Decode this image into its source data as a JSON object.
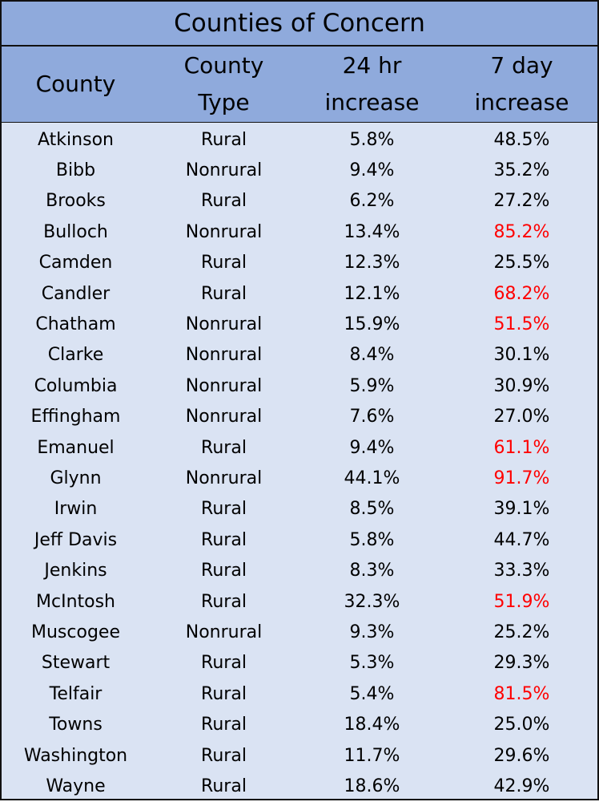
{
  "title": "Counties of Concern",
  "colors": {
    "header_bg": "#8faadc",
    "body_bg": "#dae3f3",
    "highlight": "#ff0000"
  },
  "columns": {
    "county": "County",
    "type_line1": "County",
    "type_line2": "Type",
    "h24_line1": "24 hr",
    "h24_line2": "increase",
    "d7_line1": "7 day",
    "d7_line2": "increase"
  },
  "rows": [
    {
      "county": "Atkinson",
      "type": "Rural",
      "h24": "5.8%",
      "d7": "48.5%",
      "highlight": false
    },
    {
      "county": "Bibb",
      "type": "Nonrural",
      "h24": "9.4%",
      "d7": "35.2%",
      "highlight": false
    },
    {
      "county": "Brooks",
      "type": "Rural",
      "h24": "6.2%",
      "d7": "27.2%",
      "highlight": false
    },
    {
      "county": "Bulloch",
      "type": "Nonrural",
      "h24": "13.4%",
      "d7": "85.2%",
      "highlight": true
    },
    {
      "county": "Camden",
      "type": "Rural",
      "h24": "12.3%",
      "d7": "25.5%",
      "highlight": false
    },
    {
      "county": "Candler",
      "type": "Rural",
      "h24": "12.1%",
      "d7": "68.2%",
      "highlight": true
    },
    {
      "county": "Chatham",
      "type": "Nonrural",
      "h24": "15.9%",
      "d7": "51.5%",
      "highlight": true
    },
    {
      "county": "Clarke",
      "type": "Nonrural",
      "h24": "8.4%",
      "d7": "30.1%",
      "highlight": false
    },
    {
      "county": "Columbia",
      "type": "Nonrural",
      "h24": "5.9%",
      "d7": "30.9%",
      "highlight": false
    },
    {
      "county": "Effingham",
      "type": "Nonrural",
      "h24": "7.6%",
      "d7": "27.0%",
      "highlight": false
    },
    {
      "county": "Emanuel",
      "type": "Rural",
      "h24": "9.4%",
      "d7": "61.1%",
      "highlight": true
    },
    {
      "county": "Glynn",
      "type": "Nonrural",
      "h24": "44.1%",
      "d7": "91.7%",
      "highlight": true
    },
    {
      "county": "Irwin",
      "type": "Rural",
      "h24": "8.5%",
      "d7": "39.1%",
      "highlight": false
    },
    {
      "county": "Jeff Davis",
      "type": "Rural",
      "h24": "5.8%",
      "d7": "44.7%",
      "highlight": false
    },
    {
      "county": "Jenkins",
      "type": "Rural",
      "h24": "8.3%",
      "d7": "33.3%",
      "highlight": false
    },
    {
      "county": "McIntosh",
      "type": "Rural",
      "h24": "32.3%",
      "d7": "51.9%",
      "highlight": true
    },
    {
      "county": "Muscogee",
      "type": "Nonrural",
      "h24": "9.3%",
      "d7": "25.2%",
      "highlight": false
    },
    {
      "county": "Stewart",
      "type": "Rural",
      "h24": "5.3%",
      "d7": "29.3%",
      "highlight": false
    },
    {
      "county": "Telfair",
      "type": "Rural",
      "h24": "5.4%",
      "d7": "81.5%",
      "highlight": true
    },
    {
      "county": "Towns",
      "type": "Rural",
      "h24": "18.4%",
      "d7": "25.0%",
      "highlight": false
    },
    {
      "county": "Washington",
      "type": "Rural",
      "h24": "11.7%",
      "d7": "29.6%",
      "highlight": false
    },
    {
      "county": "Wayne",
      "type": "Rural",
      "h24": "18.6%",
      "d7": "42.9%",
      "highlight": false
    }
  ]
}
